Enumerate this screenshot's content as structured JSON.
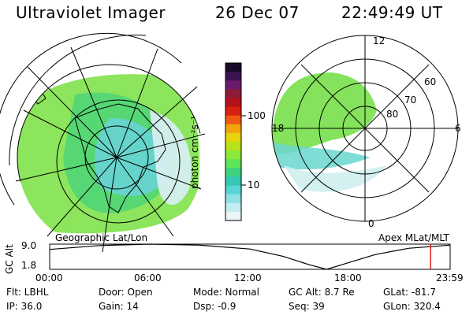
{
  "header": {
    "title": "Ultraviolet Imager",
    "date": "26 Dec 07",
    "time": "22:49:49 UT"
  },
  "left_map": {
    "caption": "Geographic Lat/Lon"
  },
  "right_map": {
    "caption": "Apex MLat/MLT",
    "lat_labels": [
      "80",
      "70",
      "60"
    ],
    "mlt_labels": {
      "top": "12",
      "bottom": "0",
      "left": "18",
      "right": "6"
    }
  },
  "colorbar": {
    "label": "photon cm⁻²s⁻¹",
    "ticks": [
      "100",
      "10"
    ],
    "colors": [
      "#1a0a2a",
      "#3a1450",
      "#6a1a6a",
      "#8e1a3a",
      "#b4121a",
      "#d81f10",
      "#ef5a12",
      "#f4a30c",
      "#e7d40e",
      "#b8e21a",
      "#8ee83a",
      "#5ee45a",
      "#3fd27e",
      "#37c7b5",
      "#57d4d4",
      "#8ee0e4",
      "#c2ecef",
      "#e9f5f6"
    ]
  },
  "altitude_plot": {
    "ylabel": "GC Alt",
    "y_ticks": [
      "9.0",
      "1.8"
    ],
    "x_ticks": [
      "00:00",
      "06:00",
      "12:00",
      "18:00",
      "23:59"
    ],
    "ylim": [
      1.8,
      9.0
    ],
    "curve": [
      {
        "x": 0.0,
        "y": 7.5
      },
      {
        "x": 3.0,
        "y": 8.6
      },
      {
        "x": 6.0,
        "y": 9.0
      },
      {
        "x": 9.0,
        "y": 8.7
      },
      {
        "x": 12.0,
        "y": 7.6
      },
      {
        "x": 14.0,
        "y": 5.5
      },
      {
        "x": 15.5,
        "y": 3.2
      },
      {
        "x": 16.6,
        "y": 1.8
      },
      {
        "x": 17.7,
        "y": 3.4
      },
      {
        "x": 19.5,
        "y": 6.0
      },
      {
        "x": 21.5,
        "y": 7.8
      },
      {
        "x": 23.98,
        "y": 8.7
      }
    ],
    "current_time": 22.83,
    "marker_color": "#e00000"
  },
  "info": {
    "flt": "Flt: LBHL",
    "ip": "IP: 36.0",
    "door": "Door: Open",
    "gain": "Gain: 14",
    "mode": "Mode: Normal",
    "dsp": "Dsp:   -0.9",
    "gcalt": "GC Alt: 8.7 Re",
    "seq": "Seq: 39",
    "glat": "GLat: -81.7",
    "glon": "GLon: 320.4"
  }
}
